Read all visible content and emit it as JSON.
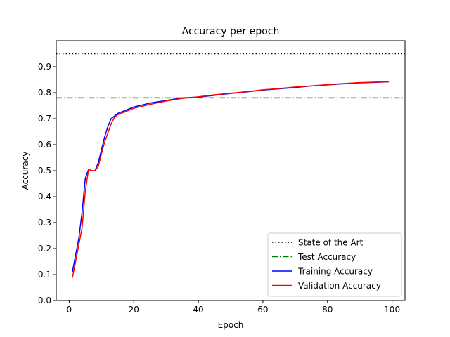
{
  "chart_data": {
    "type": "line",
    "title": "Accuracy per epoch",
    "xlabel": "Epoch",
    "ylabel": "Accuracy",
    "xlim": [
      -4.0,
      104.0
    ],
    "ylim": [
      0.0,
      1.0
    ],
    "xticks": [
      0,
      20,
      40,
      60,
      80,
      100
    ],
    "xtick_labels": [
      "0",
      "20",
      "40",
      "60",
      "80",
      "100"
    ],
    "yticks": [
      0.0,
      0.1,
      0.2,
      0.3,
      0.4,
      0.5,
      0.6,
      0.7,
      0.8,
      0.9
    ],
    "ytick_labels": [
      "0.0",
      "0.1",
      "0.2",
      "0.3",
      "0.4",
      "0.5",
      "0.6",
      "0.7",
      "0.8",
      "0.9"
    ],
    "grid": false,
    "legend_position": "lower-right",
    "hlines": [
      {
        "name": "State of the Art",
        "y": 0.95,
        "color": "#000000",
        "style": "dotted"
      },
      {
        "name": "Test Accuracy",
        "y": 0.78,
        "color": "#008000",
        "style": "dashdot"
      }
    ],
    "series": [
      {
        "name": "Training Accuracy",
        "color": "#0000ff",
        "x": [
          1,
          2,
          3,
          4,
          5,
          6,
          7,
          8,
          9,
          10,
          11,
          12,
          13,
          14,
          15,
          17,
          20,
          25,
          30,
          35,
          40,
          45,
          50,
          55,
          60,
          65,
          70,
          75,
          80,
          85,
          90,
          95,
          99
        ],
        "y": [
          0.11,
          0.175,
          0.24,
          0.34,
          0.47,
          0.505,
          0.5,
          0.5,
          0.53,
          0.58,
          0.63,
          0.67,
          0.7,
          0.71,
          0.72,
          0.73,
          0.745,
          0.76,
          0.77,
          0.78,
          0.783,
          0.79,
          0.797,
          0.803,
          0.81,
          0.815,
          0.82,
          0.826,
          0.83,
          0.834,
          0.838,
          0.84,
          0.842
        ]
      },
      {
        "name": "Validation Accuracy",
        "color": "#ff0000",
        "x": [
          1,
          2,
          3,
          4,
          5,
          6,
          7,
          8,
          9,
          10,
          11,
          12,
          13,
          14,
          15,
          17,
          20,
          25,
          30,
          35,
          40,
          45,
          50,
          55,
          60,
          65,
          70,
          75,
          80,
          85,
          90,
          95,
          99
        ],
        "y": [
          0.088,
          0.15,
          0.215,
          0.28,
          0.42,
          0.505,
          0.5,
          0.5,
          0.515,
          0.565,
          0.61,
          0.645,
          0.68,
          0.705,
          0.715,
          0.725,
          0.74,
          0.755,
          0.768,
          0.778,
          0.784,
          0.792,
          0.798,
          0.804,
          0.811,
          0.816,
          0.822,
          0.826,
          0.831,
          0.835,
          0.839,
          0.841,
          0.842
        ]
      }
    ]
  }
}
